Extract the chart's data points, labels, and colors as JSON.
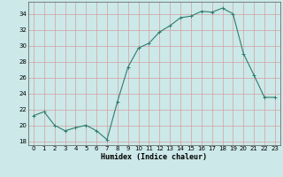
{
  "x": [
    0,
    1,
    2,
    3,
    4,
    5,
    6,
    7,
    8,
    9,
    10,
    11,
    12,
    13,
    14,
    15,
    16,
    17,
    18,
    19,
    20,
    21,
    22,
    23
  ],
  "y": [
    21.2,
    21.7,
    20.0,
    19.3,
    19.7,
    20.0,
    19.3,
    18.2,
    23.0,
    27.3,
    29.7,
    30.3,
    31.7,
    32.5,
    33.5,
    33.7,
    34.3,
    34.2,
    34.7,
    34.0,
    29.0,
    26.3,
    23.5,
    23.5
  ],
  "line_color": "#2e7d6e",
  "marker": "+",
  "markersize": 3,
  "bg_color": "#cce8e8",
  "grid_color": "#d4a0a0",
  "xlabel": "Humidex (Indice chaleur)",
  "ylabel_ticks": [
    18,
    20,
    22,
    24,
    26,
    28,
    30,
    32,
    34
  ],
  "ylim": [
    17.5,
    35.5
  ],
  "xlim": [
    -0.5,
    23.5
  ]
}
